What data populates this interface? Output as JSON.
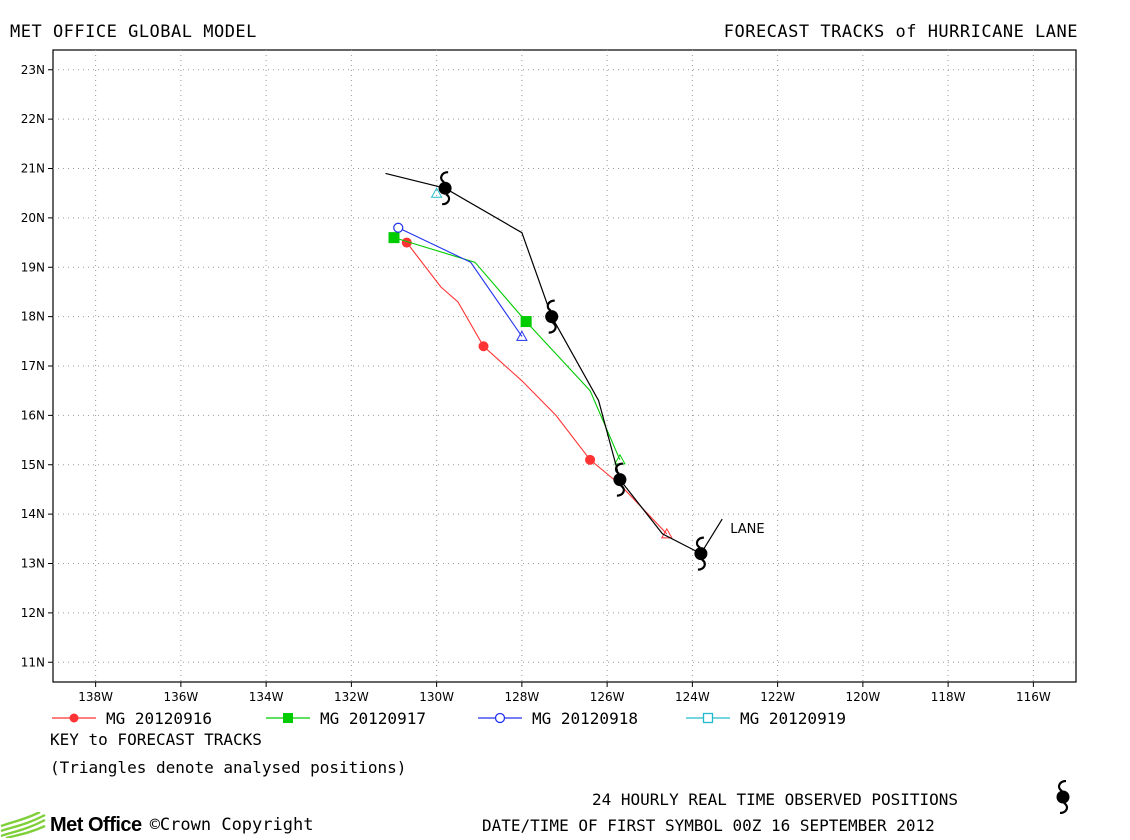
{
  "header": {
    "left_title": "MET OFFICE GLOBAL MODEL",
    "right_title": "FORECAST TRACKS of HURRICANE LANE"
  },
  "map": {
    "lon_range": [
      -139,
      -115
    ],
    "lat_range": [
      10.6,
      23.4
    ],
    "lon_ticks": [
      -138,
      -136,
      -134,
      -132,
      -130,
      -128,
      -126,
      -124,
      -122,
      -120,
      -118,
      -116
    ],
    "lon_tick_labels": [
      "138W",
      "136W",
      "134W",
      "132W",
      "130W",
      "128W",
      "126W",
      "124W",
      "122W",
      "120W",
      "118W",
      "116W"
    ],
    "lat_ticks": [
      11,
      12,
      13,
      14,
      15,
      16,
      17,
      18,
      19,
      20,
      21,
      22,
      23
    ],
    "lat_tick_labels": [
      "11N",
      "12N",
      "13N",
      "14N",
      "15N",
      "16N",
      "17N",
      "18N",
      "19N",
      "20N",
      "21N",
      "22N",
      "23N"
    ],
    "grid": "dotted"
  },
  "observed_track": {
    "storm_name": "LANE",
    "color": "#000000",
    "path": [
      [
        -123.3,
        13.9
      ],
      [
        -123.8,
        13.2
      ],
      [
        -124.7,
        13.6
      ],
      [
        -125.7,
        14.7
      ],
      [
        -126.2,
        16.3
      ],
      [
        -127.3,
        18.0
      ],
      [
        -128.0,
        19.7
      ],
      [
        -129.8,
        20.6
      ],
      [
        -131.2,
        20.9
      ]
    ],
    "symbols": [
      [
        -123.8,
        13.2
      ],
      [
        -125.7,
        14.7
      ],
      [
        -127.3,
        18.0
      ],
      [
        -129.8,
        20.6
      ]
    ]
  },
  "forecast_tracks": [
    {
      "name": "MG 20120916",
      "color": "#ff3333",
      "marker": "filled-circle",
      "path": [
        [
          -124.6,
          13.6
        ],
        [
          -125.7,
          14.6
        ],
        [
          -126.4,
          15.1
        ],
        [
          -127.2,
          16.0
        ],
        [
          -128.0,
          16.7
        ],
        [
          -128.9,
          17.4
        ],
        [
          -129.5,
          18.3
        ],
        [
          -129.9,
          18.6
        ],
        [
          -130.7,
          19.5
        ]
      ],
      "markers": [
        [
          -126.4,
          15.1
        ],
        [
          -128.9,
          17.4
        ],
        [
          -130.7,
          19.5
        ]
      ],
      "analysed": [
        -124.6,
        13.6
      ]
    },
    {
      "name": "MG 20120917",
      "color": "#00cc00",
      "marker": "filled-square",
      "path": [
        [
          -125.7,
          15.1
        ],
        [
          -126.4,
          16.5
        ],
        [
          -127.9,
          17.9
        ],
        [
          -129.1,
          19.1
        ],
        [
          -131.0,
          19.6
        ]
      ],
      "markers": [
        [
          -127.9,
          17.9
        ],
        [
          -131.0,
          19.6
        ]
      ],
      "analysed": [
        -125.7,
        15.1
      ]
    },
    {
      "name": "MG 20120918",
      "color": "#2233ee",
      "marker": "open-circle",
      "path": [
        [
          -128.0,
          17.6
        ],
        [
          -129.2,
          19.1
        ],
        [
          -130.9,
          19.8
        ]
      ],
      "markers": [
        [
          -130.9,
          19.8
        ]
      ],
      "analysed": [
        -128.0,
        17.6
      ]
    },
    {
      "name": "MG 20120919",
      "color": "#22bbcc",
      "marker": "open-square",
      "path": [],
      "markers": [],
      "analysed": [
        -130.0,
        20.5
      ]
    }
  ],
  "key": {
    "title": "KEY to FORECAST TRACKS",
    "note": "(Triangles denote analysed positions)"
  },
  "footer": {
    "observed_label": "24 HOURLY REAL TIME OBSERVED POSITIONS",
    "first_symbol": "DATE/TIME OF FIRST SYMBOL 00Z 16 SEPTEMBER 2012",
    "brand": "Met Office",
    "copyright": "©Crown Copyright"
  }
}
